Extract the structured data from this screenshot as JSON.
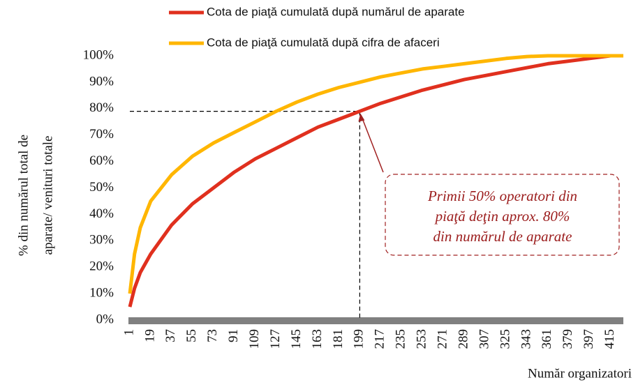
{
  "chart_data": {
    "type": "line",
    "y_label": [
      "% din numărul total de",
      "aparate/ venituri totale"
    ],
    "x_label": "Număr organizatori",
    "x": [
      1,
      5,
      10,
      19,
      37,
      55,
      73,
      91,
      109,
      127,
      145,
      163,
      181,
      199,
      217,
      235,
      253,
      271,
      289,
      307,
      325,
      343,
      361,
      379,
      397,
      415,
      426
    ],
    "series": [
      {
        "name": "Cota de piaţă cumulată după numărul de aparate",
        "color": "#e0301e",
        "values": [
          5,
          12,
          18,
          25,
          36,
          44,
          50,
          56,
          61,
          65,
          69,
          73,
          76,
          79,
          82,
          84.5,
          87,
          89,
          91,
          92.5,
          94,
          95.5,
          97,
          98,
          99,
          100,
          100
        ]
      },
      {
        "name": "Cota de piaţă cumulată după cifra de afaceri",
        "color": "#ffb600",
        "values": [
          10,
          25,
          35,
          45,
          55,
          62,
          67,
          71,
          75,
          79,
          82.5,
          85.5,
          88,
          90,
          92,
          93.5,
          95,
          96,
          97,
          98,
          99,
          99.7,
          100,
          100,
          100,
          100,
          100
        ]
      }
    ],
    "xlim": [
      1,
      426
    ],
    "xticks": [
      1,
      19,
      37,
      55,
      73,
      91,
      109,
      127,
      145,
      163,
      181,
      199,
      217,
      235,
      253,
      271,
      289,
      307,
      325,
      343,
      361,
      379,
      397,
      415
    ],
    "ylim": [
      0,
      100
    ],
    "yticks": [
      {
        "value": 0,
        "label": "0%"
      },
      {
        "value": 10,
        "label": "10%"
      },
      {
        "value": 20,
        "label": "20%"
      },
      {
        "value": 30,
        "label": "30%"
      },
      {
        "value": 40,
        "label": "40%"
      },
      {
        "value": 50,
        "label": "50%"
      },
      {
        "value": 60,
        "label": "60%"
      },
      {
        "value": 70,
        "label": "70%"
      },
      {
        "value": 80,
        "label": "80%"
      },
      {
        "value": 90,
        "label": "90%"
      },
      {
        "value": 100,
        "label": "100%"
      }
    ],
    "annotation": {
      "lines": [
        "Primii 50% operatori din",
        "piaţă deţin aprox. 80%",
        "din numărul de aparate"
      ],
      "x": 199,
      "y": 79
    }
  }
}
